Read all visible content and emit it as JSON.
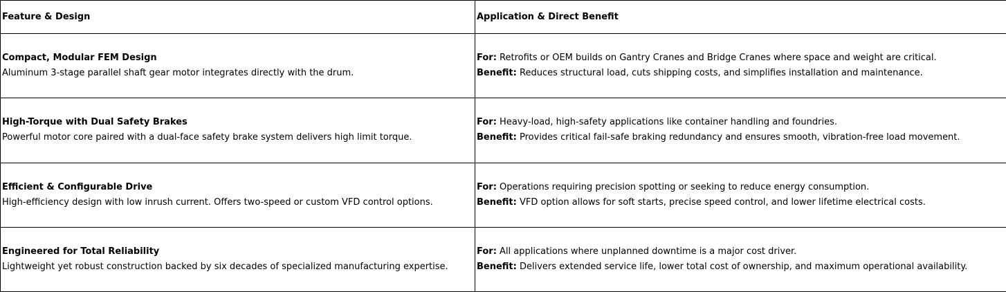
{
  "headers": {
    "feature": "Feature & Design",
    "application": "Application & Direct Benefit"
  },
  "labels": {
    "for": "For:",
    "benefit": "Benefit:"
  },
  "rows": [
    {
      "title": "Compact, Modular FEM Design",
      "description": "Aluminum 3-stage parallel shaft gear motor integrates directly with the drum.",
      "for": "Retrofits or OEM builds on Gantry Cranes and Bridge Cranes where space and weight are critical.",
      "benefit": "Reduces structural load, cuts shipping costs, and simplifies installation and maintenance."
    },
    {
      "title": "High-Torque with Dual Safety Brakes",
      "description": "Powerful motor core paired with a dual-face safety brake system delivers high limit torque.",
      "for": "Heavy-load, high-safety applications like container handling and foundries.",
      "benefit": "Provides critical fail-safe braking redundancy and ensures smooth, vibration-free load movement."
    },
    {
      "title": "Efficient & Configurable Drive",
      "description": "High-efficiency design with low inrush current. Offers two-speed or custom VFD control options.",
      "for": "Operations requiring precision spotting or seeking to reduce energy consumption.",
      "benefit": "VFD option allows for soft starts, precise speed control, and lower lifetime electrical costs."
    },
    {
      "title": "Engineered for Total Reliability",
      "description": "Lightweight yet robust construction backed by six decades of specialized manufacturing expertise.",
      "for": "All applications where unplanned downtime is a major cost driver.",
      "benefit": "Delivers extended service life, lower total cost of ownership, and maximum operational availability."
    }
  ]
}
